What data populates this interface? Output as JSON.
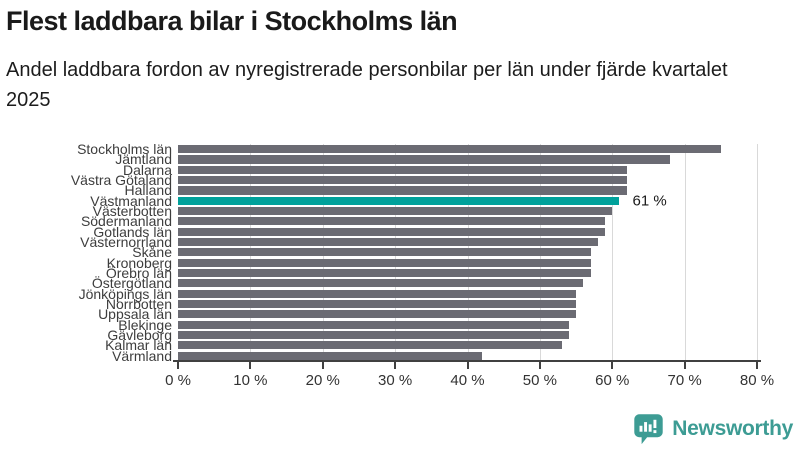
{
  "header": {
    "title": "Flest laddbara bilar i Stockholms län",
    "subtitle": "Andel laddbara fordon av nyregistrerade personbilar per län under fjärde kvartalet 2025"
  },
  "chart_data": {
    "type": "bar",
    "orientation": "horizontal",
    "title": "Flest laddbara bilar i Stockholms län",
    "xlabel": "",
    "ylabel": "",
    "unit": "%",
    "xlim": [
      0,
      80
    ],
    "x_ticks": [
      "0 %",
      "10 %",
      "20 %",
      "30 %",
      "40 %",
      "50 %",
      "60 %",
      "70 %",
      "80 %"
    ],
    "grid": true,
    "bar_color": "#6b6b73",
    "categories": [
      "Stockholms län",
      "Jämtland",
      "Dalarna",
      "Västra Götaland",
      "Halland",
      "Västmanland",
      "Västerbotten",
      "Södermanland",
      "Gotlands län",
      "Västernorrland",
      "Skåne",
      "Kronoberg",
      "Örebro län",
      "Östergötland",
      "Jönköpings län",
      "Norrbotten",
      "Uppsala län",
      "Blekinge",
      "Gävleborg",
      "Kalmar län",
      "Värmland"
    ],
    "values": [
      75,
      68,
      62,
      62,
      62,
      61,
      60,
      59,
      59,
      58,
      57,
      57,
      57,
      56,
      55,
      55,
      55,
      54,
      54,
      53,
      42
    ],
    "highlight": {
      "category": "Västmanland",
      "value": 61,
      "label": "61 %",
      "color": "#00a19b"
    }
  },
  "annotation": {
    "label": "61 %"
  },
  "footer": {
    "brand": "Newsworthy",
    "logo_icon": "newsworthy-speech-bubble-chart-icon",
    "brand_color": "#3d9c94"
  },
  "colors": {
    "bar_gray": "#6b6b73",
    "highlight_teal": "#00a19b",
    "gridline": "#d9d9d9",
    "axis": "#404040",
    "text": "#1a1a1a",
    "brand": "#3d9c94"
  }
}
